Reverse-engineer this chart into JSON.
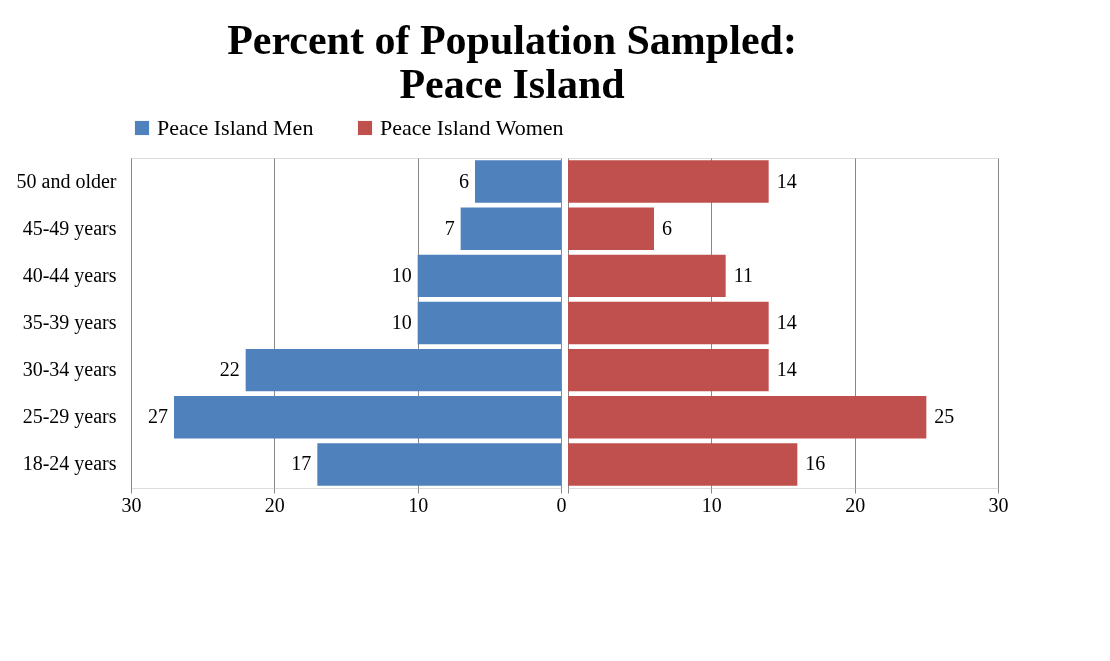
{
  "chart_data": [
    {
      "type": "bar",
      "orientation": "horizontal",
      "title": "Percent of Population Sampled:\nPeace Island",
      "categories": [
        "50 and older",
        "45-49 years",
        "40-44 years",
        "35-39 years",
        "30-34 years",
        "25-29 years",
        "18-24 years"
      ],
      "series": [
        {
          "name": "Peace Island Men",
          "color": "#4f81bd",
          "values": [
            6,
            7,
            10,
            10,
            22,
            27,
            17
          ]
        }
      ],
      "xlim": [
        30,
        0
      ],
      "xticks": [
        30,
        20,
        10,
        0
      ],
      "grid": "x",
      "legend": "top",
      "data_labels": true
    },
    {
      "type": "bar",
      "orientation": "horizontal",
      "categories": [
        "50 and older",
        "45-49 years",
        "40-44 years",
        "35-39 years",
        "30-34 years",
        "25-29 years",
        "18-24 years"
      ],
      "series": [
        {
          "name": "Peace Island Women",
          "color": "#c0504d",
          "values": [
            14,
            6,
            11,
            14,
            14,
            25,
            16
          ]
        }
      ],
      "xlim": [
        0,
        30
      ],
      "xticks": [
        {
          "value": 0,
          "label": null
        },
        10,
        20,
        30
      ],
      "tick_labels": "x",
      "grid": "x",
      "legend": "top",
      "data_labels": true
    }
  ]
}
